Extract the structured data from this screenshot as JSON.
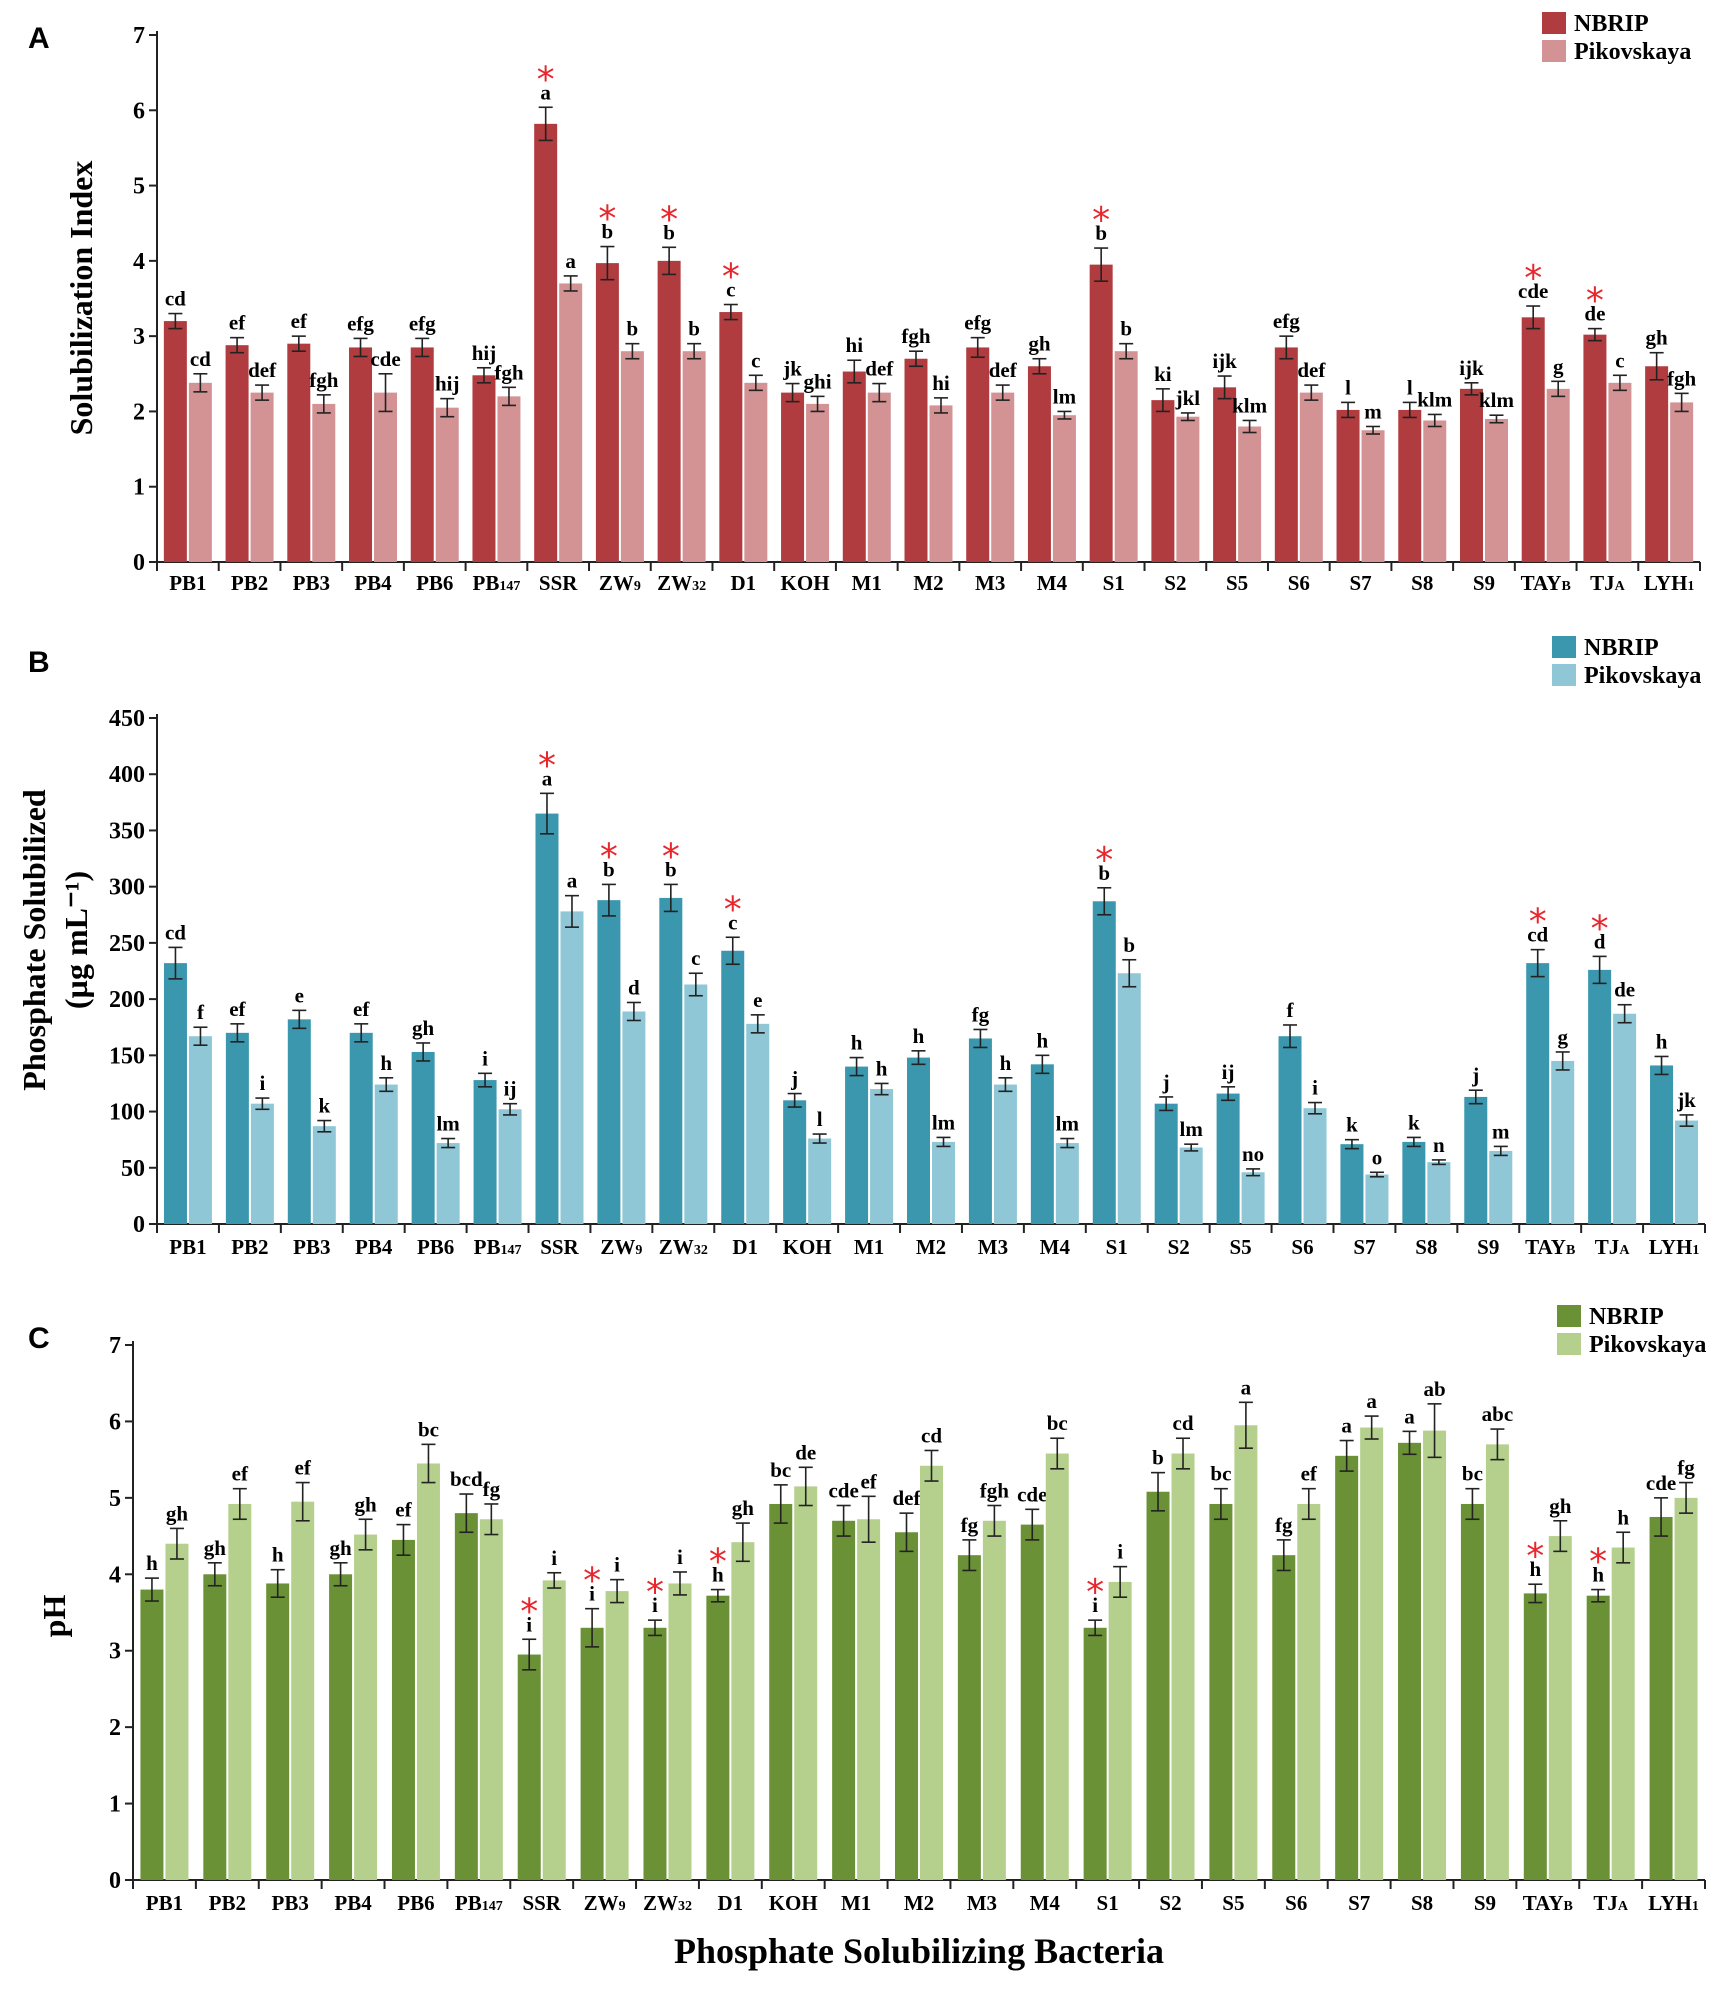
{
  "chart_data": [
    {
      "panel": "A",
      "type": "bar",
      "xlabel": "",
      "ylabel": "Solubilization Index",
      "ylim": [
        0,
        7
      ],
      "yticks": [
        "0",
        "1",
        "2",
        "3",
        "4",
        "5",
        "6",
        "7"
      ],
      "categories": [
        "PB1",
        "PB2",
        "PB3",
        "PB4",
        "PB6",
        "PB147",
        "SSR",
        "ZW9",
        "ZW32",
        "D1",
        "KOH",
        "M1",
        "M2",
        "M3",
        "M4",
        "S1",
        "S2",
        "S5",
        "S6",
        "S7",
        "S8",
        "S9",
        "TAYB",
        "TJA",
        "LYH1"
      ],
      "category_labels": [
        [
          "PB1",
          ""
        ],
        [
          "PB2",
          ""
        ],
        [
          "PB3",
          ""
        ],
        [
          "PB4",
          ""
        ],
        [
          "PB6",
          ""
        ],
        [
          "PB",
          "147"
        ],
        [
          "SSR",
          ""
        ],
        [
          "ZW",
          "9"
        ],
        [
          "ZW",
          "32"
        ],
        [
          "D1",
          ""
        ],
        [
          "KOH",
          ""
        ],
        [
          "M1",
          ""
        ],
        [
          "M2",
          ""
        ],
        [
          "M3",
          ""
        ],
        [
          "M4",
          ""
        ],
        [
          "S1",
          ""
        ],
        [
          "S2",
          ""
        ],
        [
          "S5",
          ""
        ],
        [
          "S6",
          ""
        ],
        [
          "S7",
          ""
        ],
        [
          "S8",
          ""
        ],
        [
          "S9",
          ""
        ],
        [
          "TAY",
          "B"
        ],
        [
          "TJ",
          "A"
        ],
        [
          "LYH",
          "1"
        ]
      ],
      "series": [
        {
          "name": "NBRIP",
          "color": "#b03c3f",
          "values": [
            3.2,
            2.88,
            2.9,
            2.85,
            2.85,
            2.48,
            5.82,
            3.97,
            4.0,
            3.32,
            2.25,
            2.53,
            2.7,
            2.85,
            2.6,
            3.95,
            2.15,
            2.32,
            2.85,
            2.02,
            2.02,
            2.3,
            3.25,
            3.02,
            2.6
          ],
          "errors": [
            0.1,
            0.1,
            0.1,
            0.12,
            0.12,
            0.1,
            0.22,
            0.22,
            0.18,
            0.1,
            0.12,
            0.15,
            0.1,
            0.13,
            0.1,
            0.22,
            0.15,
            0.15,
            0.15,
            0.1,
            0.1,
            0.08,
            0.15,
            0.08,
            0.18
          ],
          "labels": [
            "cd",
            "ef",
            "ef",
            "efg",
            "efg",
            "hij",
            "a",
            "b",
            "b",
            "c",
            "jk",
            "hi",
            "fgh",
            "efg",
            "gh",
            "b",
            "ki",
            "ijk",
            "efg",
            "l",
            "l",
            "ijk",
            "cde",
            "de",
            "gh"
          ]
        },
        {
          "name": "Pikovskaya",
          "color": "#d39394",
          "values": [
            2.38,
            2.25,
            2.1,
            2.25,
            2.05,
            2.2,
            3.7,
            2.8,
            2.8,
            2.38,
            2.1,
            2.25,
            2.08,
            2.25,
            1.95,
            2.8,
            1.93,
            1.8,
            2.25,
            1.75,
            1.88,
            1.9,
            2.3,
            2.38,
            2.12
          ],
          "errors": [
            0.12,
            0.1,
            0.12,
            0.25,
            0.12,
            0.12,
            0.1,
            0.1,
            0.1,
            0.1,
            0.1,
            0.12,
            0.1,
            0.1,
            0.05,
            0.1,
            0.05,
            0.08,
            0.1,
            0.05,
            0.08,
            0.05,
            0.1,
            0.1,
            0.12
          ],
          "labels": [
            "cd",
            "def",
            "fgh",
            "cde",
            "hij",
            "fgh",
            "a",
            "b",
            "b",
            "c",
            "ghi",
            "def",
            "hi",
            "def",
            "lm",
            "b",
            "jkl",
            "klm",
            "def",
            "m",
            "klm",
            "klm",
            "g",
            "c",
            "fgh"
          ]
        }
      ],
      "starred": [
        "SSR",
        "ZW9",
        "ZW32",
        "D1",
        "S1",
        "TAYB",
        "TJA"
      ]
    },
    {
      "panel": "B",
      "type": "bar",
      "xlabel": "",
      "ylabel": [
        "Phosphate Solubilized",
        "(µg mL⁻¹)"
      ],
      "ylim": [
        0,
        450
      ],
      "yticks": [
        "0",
        "50",
        "100",
        "150",
        "200",
        "250",
        "300",
        "350",
        "400",
        "450"
      ],
      "categories": [
        "PB1",
        "PB2",
        "PB3",
        "PB4",
        "PB6",
        "PB147",
        "SSR",
        "ZW9",
        "ZW32",
        "D1",
        "KOH",
        "M1",
        "M2",
        "M3",
        "M4",
        "S1",
        "S2",
        "S5",
        "S6",
        "S7",
        "S8",
        "S9",
        "TAYB",
        "TJA",
        "LYH1"
      ],
      "category_labels": [
        [
          "PB1",
          ""
        ],
        [
          "PB2",
          ""
        ],
        [
          "PB3",
          ""
        ],
        [
          "PB4",
          ""
        ],
        [
          "PB6",
          ""
        ],
        [
          "PB",
          "147"
        ],
        [
          "SSR",
          ""
        ],
        [
          "ZW",
          "9"
        ],
        [
          "ZW",
          "32"
        ],
        [
          "D1",
          ""
        ],
        [
          "KOH",
          ""
        ],
        [
          "M1",
          ""
        ],
        [
          "M2",
          ""
        ],
        [
          "M3",
          ""
        ],
        [
          "M4",
          ""
        ],
        [
          "S1",
          ""
        ],
        [
          "S2",
          ""
        ],
        [
          "S5",
          ""
        ],
        [
          "S6",
          ""
        ],
        [
          "S7",
          ""
        ],
        [
          "S8",
          ""
        ],
        [
          "S9",
          ""
        ],
        [
          "TAY",
          "B"
        ],
        [
          "TJ",
          "A"
        ],
        [
          "LYH",
          "1"
        ]
      ],
      "series": [
        {
          "name": "NBRIP",
          "color": "#3a97ae",
          "values": [
            232,
            170,
            182,
            170,
            153,
            128,
            365,
            288,
            290,
            243,
            110,
            140,
            148,
            165,
            142,
            287,
            107,
            116,
            167,
            71,
            73,
            113,
            232,
            226,
            141
          ],
          "errors": [
            14,
            8,
            8,
            8,
            8,
            6,
            18,
            14,
            12,
            12,
            6,
            8,
            6,
            8,
            8,
            12,
            6,
            6,
            10,
            4,
            4,
            6,
            12,
            12,
            8
          ],
          "labels": [
            "cd",
            "ef",
            "e",
            "ef",
            "gh",
            "i",
            "a",
            "b",
            "b",
            "c",
            "j",
            "h",
            "h",
            "fg",
            "h",
            "b",
            "j",
            "ij",
            "f",
            "k",
            "k",
            "j",
            "cd",
            "d",
            "h"
          ]
        },
        {
          "name": "Pikovskaya",
          "color": "#8fc7d6",
          "values": [
            167,
            107,
            87,
            124,
            72,
            102,
            278,
            189,
            213,
            178,
            76,
            120,
            73,
            124,
            72,
            223,
            68,
            46,
            103,
            44,
            55,
            65,
            145,
            187,
            92
          ],
          "errors": [
            8,
            5,
            5,
            6,
            4,
            5,
            14,
            8,
            10,
            8,
            4,
            5,
            4,
            6,
            4,
            12,
            3,
            3,
            5,
            2,
            2,
            4,
            8,
            8,
            5
          ],
          "labels": [
            "f",
            "i",
            "k",
            "h",
            "lm",
            "ij",
            "a",
            "d",
            "c",
            "e",
            "l",
            "h",
            "lm",
            "h",
            "lm",
            "b",
            "lm",
            "no",
            "i",
            "o",
            "n",
            "m",
            "g",
            "de",
            "jk"
          ]
        }
      ],
      "starred": [
        "SSR",
        "ZW9",
        "ZW32",
        "D1",
        "S1",
        "TAYB",
        "TJA"
      ]
    },
    {
      "panel": "C",
      "type": "bar",
      "xlabel": "Phosphate Solubilizing Bacteria",
      "ylabel": "pH",
      "ylim": [
        0,
        7
      ],
      "yticks": [
        "0",
        "1",
        "2",
        "3",
        "4",
        "5",
        "6",
        "7"
      ],
      "categories": [
        "PB1",
        "PB2",
        "PB3",
        "PB4",
        "PB6",
        "PB147",
        "SSR",
        "ZW9",
        "ZW32",
        "D1",
        "KOH",
        "M1",
        "M2",
        "M3",
        "M4",
        "S1",
        "S2",
        "S5",
        "S6",
        "S7",
        "S8",
        "S9",
        "TAYB",
        "TJA",
        "LYH1"
      ],
      "category_labels": [
        [
          "PB1",
          ""
        ],
        [
          "PB2",
          ""
        ],
        [
          "PB3",
          ""
        ],
        [
          "PB4",
          ""
        ],
        [
          "PB6",
          ""
        ],
        [
          "PB",
          "147"
        ],
        [
          "SSR",
          ""
        ],
        [
          "ZW",
          "9"
        ],
        [
          "ZW",
          "32"
        ],
        [
          "D1",
          ""
        ],
        [
          "KOH",
          ""
        ],
        [
          "M1",
          ""
        ],
        [
          "M2",
          ""
        ],
        [
          "M3",
          ""
        ],
        [
          "M4",
          ""
        ],
        [
          "S1",
          ""
        ],
        [
          "S2",
          ""
        ],
        [
          "S5",
          ""
        ],
        [
          "S6",
          ""
        ],
        [
          "S7",
          ""
        ],
        [
          "S8",
          ""
        ],
        [
          "S9",
          ""
        ],
        [
          "TAY",
          "B"
        ],
        [
          "TJ",
          "A"
        ],
        [
          "LYH",
          "1"
        ]
      ],
      "series": [
        {
          "name": "NBRIP",
          "color": "#6b9136",
          "values": [
            3.8,
            4.0,
            3.88,
            4.0,
            4.45,
            4.8,
            2.95,
            3.3,
            3.3,
            3.72,
            4.92,
            4.7,
            4.55,
            4.25,
            4.65,
            3.3,
            5.08,
            4.92,
            4.25,
            5.55,
            5.72,
            4.92,
            3.75,
            3.72,
            4.75
          ],
          "errors": [
            0.15,
            0.15,
            0.18,
            0.15,
            0.2,
            0.25,
            0.2,
            0.25,
            0.1,
            0.08,
            0.25,
            0.2,
            0.25,
            0.2,
            0.2,
            0.1,
            0.25,
            0.2,
            0.2,
            0.2,
            0.15,
            0.2,
            0.12,
            0.08,
            0.25
          ],
          "labels": [
            "h",
            "gh",
            "h",
            "gh",
            "ef",
            "bcd",
            "i",
            "i",
            "i",
            "h",
            "bc",
            "cde",
            "def",
            "fg",
            "cde",
            "i",
            "b",
            "bc",
            "fg",
            "a",
            "a",
            "bc",
            "h",
            "h",
            "cde"
          ]
        },
        {
          "name": "Pikovskaya",
          "color": "#b5d08d",
          "values": [
            4.4,
            4.92,
            4.95,
            4.52,
            5.45,
            4.72,
            3.92,
            3.78,
            3.88,
            4.42,
            5.15,
            4.72,
            5.42,
            4.7,
            5.58,
            3.9,
            5.58,
            5.95,
            4.92,
            5.92,
            5.88,
            5.7,
            4.5,
            4.35,
            5.0
          ],
          "errors": [
            0.2,
            0.2,
            0.25,
            0.2,
            0.25,
            0.2,
            0.1,
            0.15,
            0.15,
            0.25,
            0.25,
            0.3,
            0.2,
            0.2,
            0.2,
            0.2,
            0.2,
            0.3,
            0.2,
            0.15,
            0.35,
            0.2,
            0.2,
            0.2,
            0.2
          ],
          "labels": [
            "gh",
            "ef",
            "ef",
            "gh",
            "bc",
            "fg",
            "i",
            "i",
            "i",
            "gh",
            "de",
            "ef",
            "cd",
            "fgh",
            "bc",
            "i",
            "cd",
            "a",
            "ef",
            "a",
            "ab",
            "abc",
            "gh",
            "h",
            "fg"
          ]
        }
      ],
      "starred": [
        "SSR",
        "ZW9",
        "ZW32",
        "D1",
        "S1",
        "TAYB",
        "TJA"
      ]
    }
  ],
  "panels": [
    "A",
    "B",
    "C"
  ],
  "star_symbol": "*"
}
